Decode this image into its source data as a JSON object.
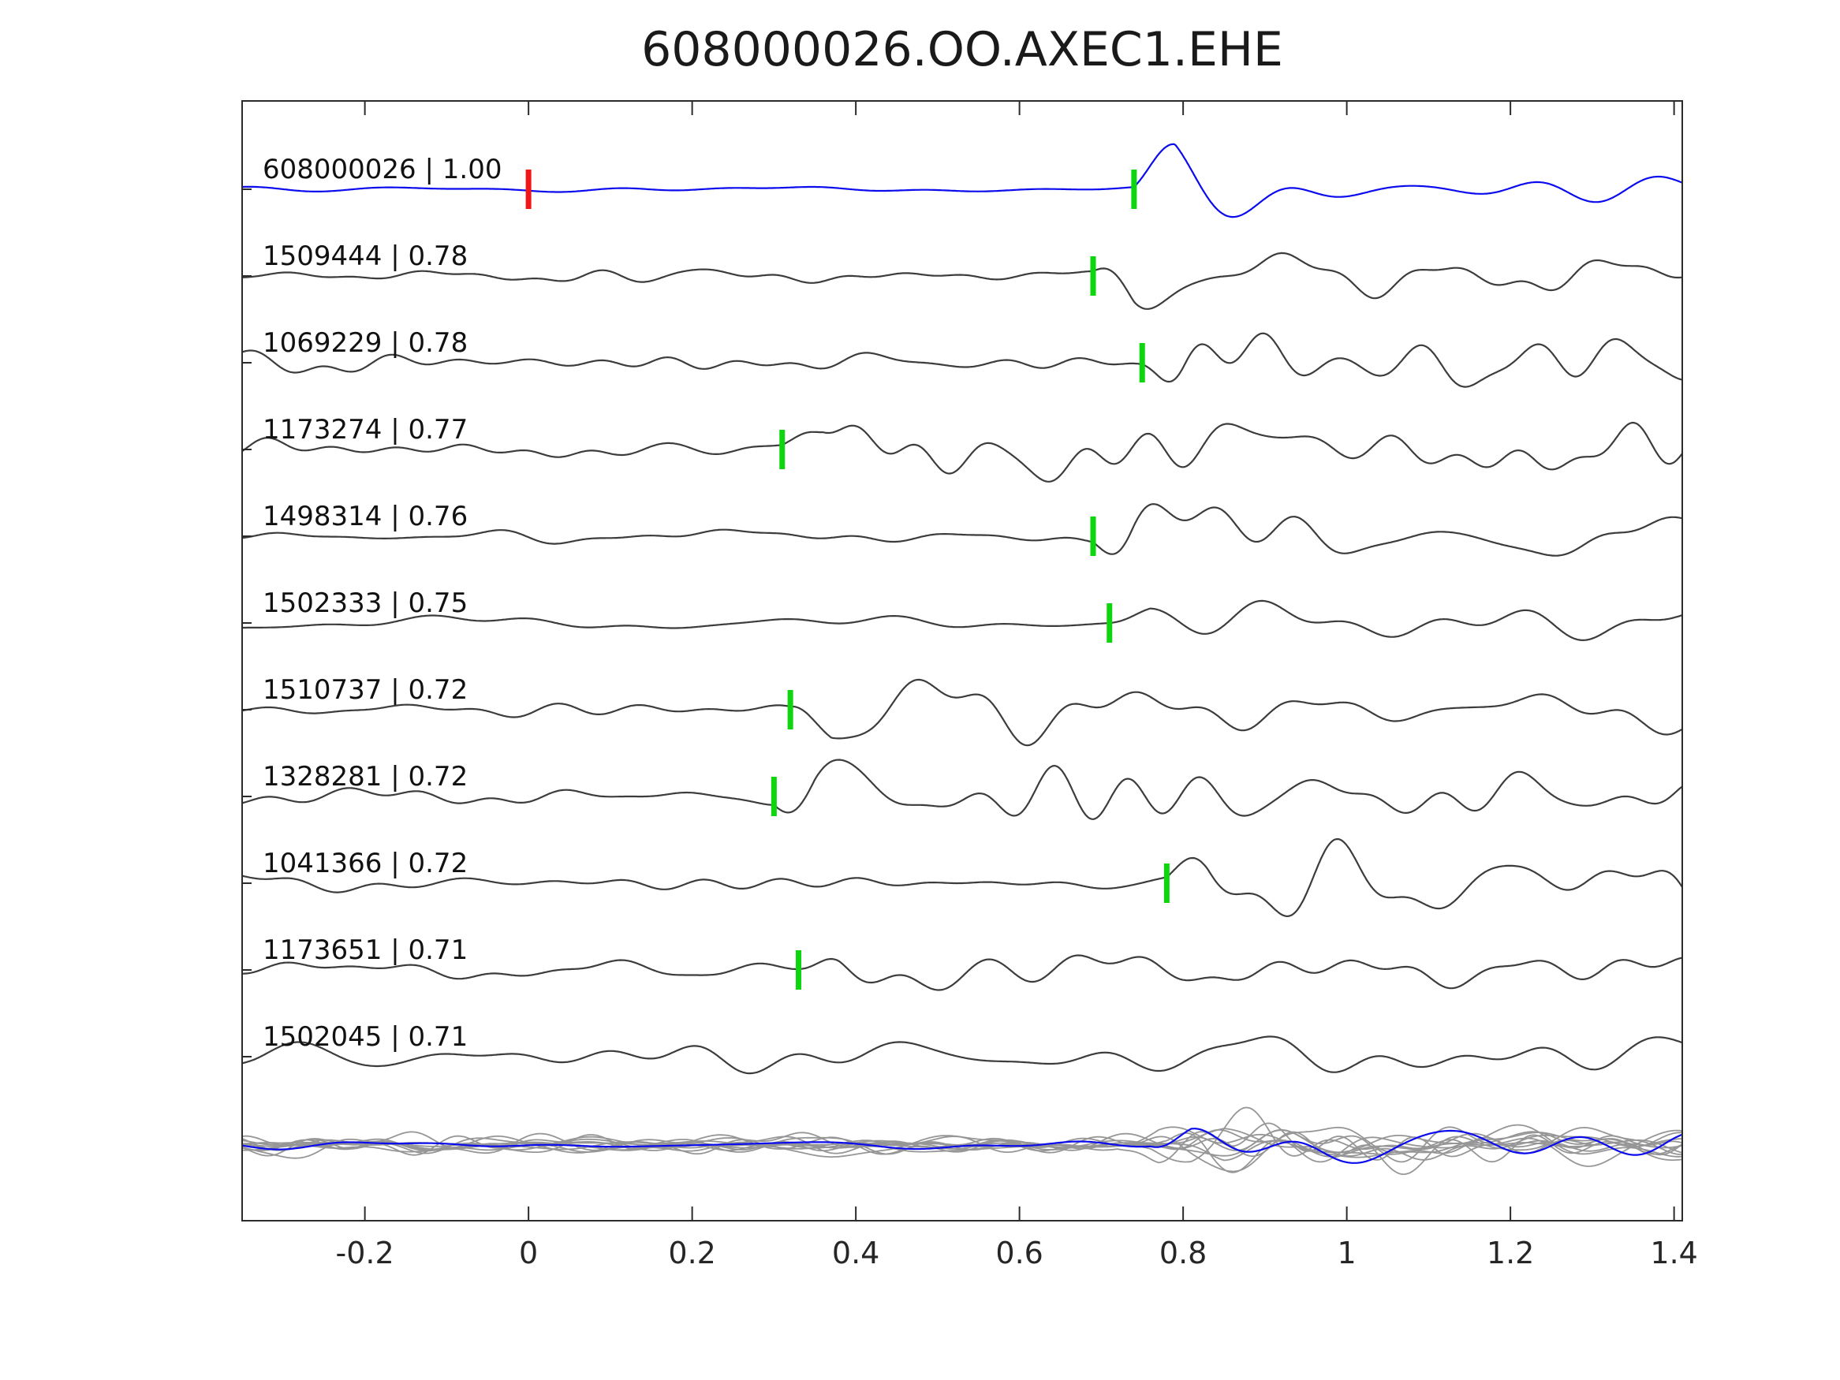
{
  "title": "608000026.OO.AXEC1.EHE",
  "colors": {
    "master": "#0b0bee",
    "trace": "#3c3c3c",
    "overlay": "#969696",
    "pick": "#0ed60e",
    "reference_pick": "#f21717",
    "axis": "#2b2b2b",
    "text": "#111111"
  },
  "chart_data": {
    "type": "line",
    "title": "608000026.OO.AXEC1.EHE",
    "xlabel": "",
    "ylabel": "",
    "grid": false,
    "legend": false,
    "xlim": [
      -0.35,
      1.41
    ],
    "x_ticks": [
      {
        "value": -0.2,
        "label": "-0.2"
      },
      {
        "value": 0,
        "label": "0"
      },
      {
        "value": 0.2,
        "label": "0.2"
      },
      {
        "value": 0.4,
        "label": "0.4"
      },
      {
        "value": 0.6,
        "label": "0.6"
      },
      {
        "value": 0.8,
        "label": "0.8"
      },
      {
        "value": 1,
        "label": "1"
      },
      {
        "value": 1.2,
        "label": "1.2"
      },
      {
        "value": 1.4,
        "label": "1.4"
      }
    ],
    "traces": [
      {
        "id": "608000026",
        "correlation": "1.00",
        "label": "608000026 | 1.00",
        "color": "#0b0bee",
        "pick_time": 0.74,
        "pick_color": "#0ed60e",
        "reference_pick": {
          "time": 0.0,
          "color": "#f21717"
        },
        "is_master": true
      },
      {
        "id": "1509444",
        "correlation": "0.78",
        "label": "1509444 | 0.78",
        "color": "#3c3c3c",
        "pick_time": 0.69,
        "pick_color": "#0ed60e"
      },
      {
        "id": "1069229",
        "correlation": "0.78",
        "label": "1069229 | 0.78",
        "color": "#3c3c3c",
        "pick_time": 0.75,
        "pick_color": "#0ed60e"
      },
      {
        "id": "1173274",
        "correlation": "0.77",
        "label": "1173274 | 0.77",
        "color": "#3c3c3c",
        "pick_time": 0.31,
        "pick_color": "#0ed60e"
      },
      {
        "id": "1498314",
        "correlation": "0.76",
        "label": "1498314 | 0.76",
        "color": "#3c3c3c",
        "pick_time": 0.69,
        "pick_color": "#0ed60e"
      },
      {
        "id": "1502333",
        "correlation": "0.75",
        "label": "1502333 | 0.75",
        "color": "#3c3c3c",
        "pick_time": 0.71,
        "pick_color": "#0ed60e"
      },
      {
        "id": "1510737",
        "correlation": "0.72",
        "label": "1510737 | 0.72",
        "color": "#3c3c3c",
        "pick_time": 0.32,
        "pick_color": "#0ed60e"
      },
      {
        "id": "1328281",
        "correlation": "0.72",
        "label": "1328281 | 0.72",
        "color": "#3c3c3c",
        "pick_time": 0.3,
        "pick_color": "#0ed60e"
      },
      {
        "id": "1041366",
        "correlation": "0.72",
        "label": "1041366 | 0.72",
        "color": "#3c3c3c",
        "pick_time": 0.78,
        "pick_color": "#0ed60e"
      },
      {
        "id": "1173651",
        "correlation": "0.71",
        "label": "1173651 | 0.71",
        "color": "#3c3c3c",
        "pick_time": 0.33,
        "pick_color": "#0ed60e"
      },
      {
        "id": "1502045",
        "correlation": "0.71",
        "label": "1502045 | 0.71",
        "color": "#3c3c3c",
        "pick_time": null
      }
    ],
    "overlay_row": {
      "note": "all matched traces overlaid in gray with master trace in blue"
    }
  }
}
